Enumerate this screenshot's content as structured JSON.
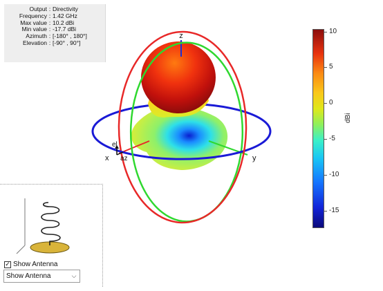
{
  "info": {
    "rows": [
      {
        "label": "Output",
        "value": "Directivity"
      },
      {
        "label": "Frequency",
        "value": "1.42 GHz"
      },
      {
        "label": "Max value",
        "value": "10.2 dBi"
      },
      {
        "label": "Min value",
        "value": "-17.7 dBi"
      },
      {
        "label": "Azimuth",
        "value": "[-180° , 180°]"
      },
      {
        "label": "Elevation",
        "value": "[-90° , 90°]"
      }
    ],
    "separator": ":"
  },
  "axes": {
    "z": "z",
    "y": "y",
    "x": "x",
    "el": "el",
    "az": "az"
  },
  "colorbar": {
    "ticks": [
      "10",
      "5",
      "0",
      "-5",
      "-10",
      "-15"
    ],
    "unit": "dBi"
  },
  "controls": {
    "show_antenna_label": "Show Antenna",
    "checkbox_mark": "✓",
    "dropdown_value": "Show Antenna",
    "dropdown_arrow": "⌵"
  },
  "colors": {
    "azimuth_ring": "#1a1ad6",
    "elevation_ring_a": "#e82828",
    "elevation_ring_b": "#2fd82f",
    "antenna_ground": "#d9b43a"
  }
}
